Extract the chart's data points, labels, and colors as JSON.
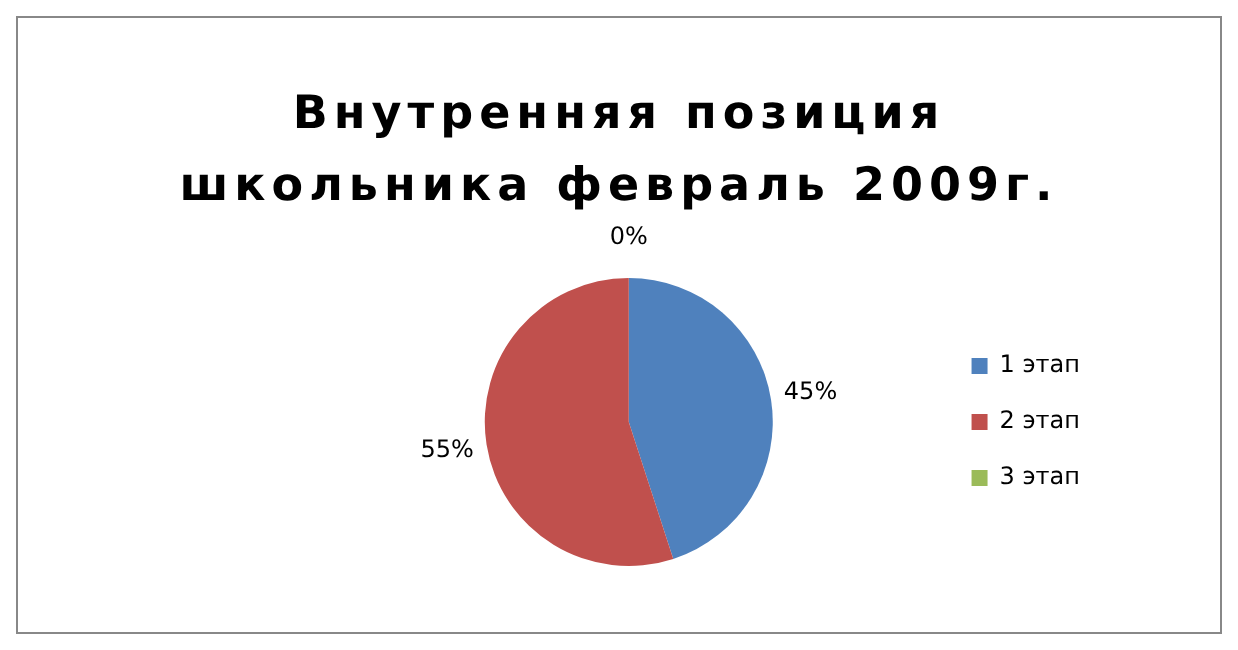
{
  "chart_data": {
    "type": "pie",
    "title": "Внутренняя позиция школьника февраль 2009г.",
    "categories": [
      "1 этап",
      "2 этап",
      "3 этап"
    ],
    "values": [
      45,
      55,
      0
    ],
    "colors": [
      "#4f81bd",
      "#c0504d",
      "#9bbb59"
    ],
    "value_labels": [
      "45%",
      "55%",
      "0%"
    ],
    "legend": "right"
  }
}
